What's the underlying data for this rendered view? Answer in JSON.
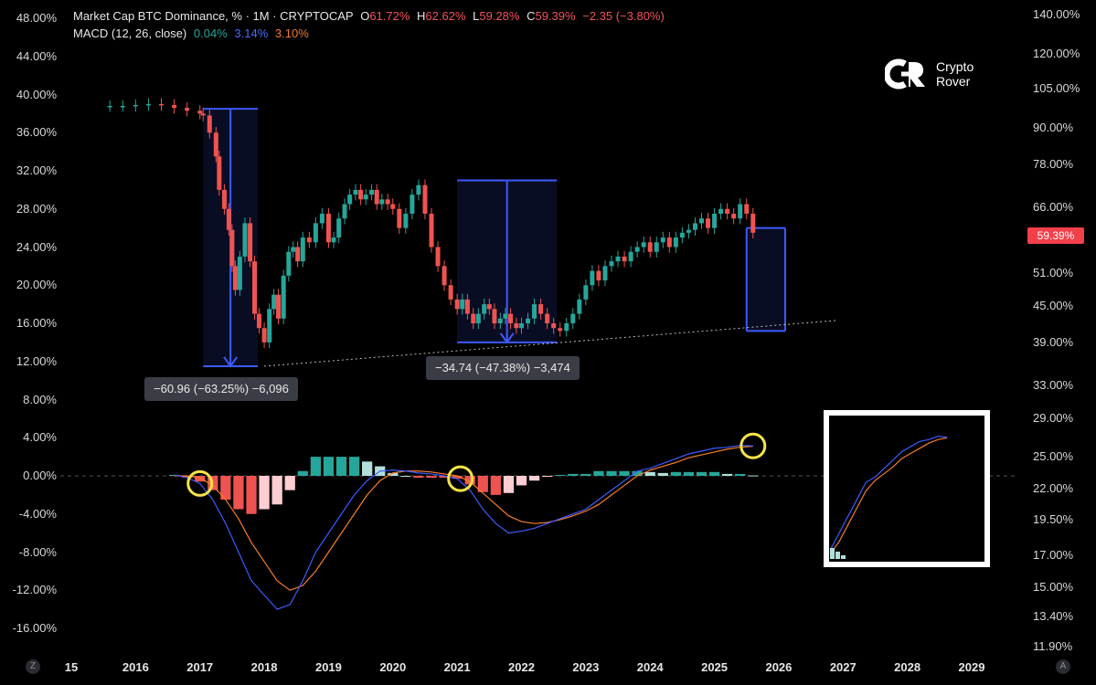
{
  "header": {
    "symbol": "Market Cap BTC Dominance, % · 1M · CRYPTOCAP",
    "o_label": "O",
    "o_value": "61.72%",
    "h_label": "H",
    "h_value": "62.62%",
    "l_label": "L",
    "l_value": "59.28%",
    "c_label": "C",
    "c_value": "59.39%",
    "change": "−2.35 (−3.80%)",
    "macd_label": "MACD (12, 26, close)",
    "macd_hist": "0.04%",
    "macd_line": "3.14%",
    "macd_signal": "3.10%"
  },
  "logo": {
    "line1": "Crypto",
    "line2": "Rover"
  },
  "price_tag": "59.39%",
  "measure_labels": {
    "first": "−60.96 (−63.25%) −6,096",
    "second": "−34.74 (−47.38%) −3,474"
  },
  "corner": {
    "left": "Z",
    "right": "A"
  },
  "colors": {
    "up": "#26a69a",
    "down": "#ef5350",
    "macd": "#3d5afe",
    "signal": "#f57c2a",
    "hist_pos": "#26a69a",
    "hist_pos_light": "#b2dfdb",
    "hist_neg": "#ef5350",
    "hist_neg_light": "#ffcdd2",
    "range_box": "#3d5afe",
    "highlight": "#f7e34a"
  },
  "chart_data": {
    "type": "line",
    "title": "Market Cap BTC Dominance, % · 1M · CRYPTOCAP",
    "left_axis": {
      "ticks": [
        "48.00%",
        "44.00%",
        "40.00%",
        "36.00%",
        "32.00%",
        "28.00%",
        "24.00%",
        "20.00%",
        "16.00%",
        "12.00%",
        "8.00%",
        "4.00%",
        "0.00%",
        "-4.00%",
        "-8.00%",
        "-12.00%",
        "-16.00%"
      ],
      "range": [
        -16,
        48
      ]
    },
    "right_axis": {
      "scale": "log",
      "ticks": [
        "140.00%",
        "120.00%",
        "105.00%",
        "90.00%",
        "78.00%",
        "66.00%",
        "59.39%",
        "51.00%",
        "45.00%",
        "39.00%",
        "33.00%",
        "29.00%",
        "25.00%",
        "22.00%",
        "19.50%",
        "17.00%",
        "15.00%",
        "13.40%",
        "11.90%"
      ]
    },
    "x_ticks": [
      "15",
      "2016",
      "2017",
      "2018",
      "2019",
      "2020",
      "2021",
      "2022",
      "2023",
      "2024",
      "2025",
      "2026",
      "2027",
      "2028",
      "2029"
    ],
    "x_range": [
      2015.0,
      2029.0
    ],
    "dominance_close": {
      "x": [
        2015.6,
        2015.8,
        2016.0,
        2016.2,
        2016.4,
        2016.6,
        2016.8,
        2017.0,
        2017.05,
        2017.15,
        2017.25,
        2017.3,
        2017.38,
        2017.45,
        2017.5,
        2017.55,
        2017.62,
        2017.7,
        2017.78,
        2017.85,
        2017.92,
        2018.0,
        2018.08,
        2018.15,
        2018.22,
        2018.3,
        2018.38,
        2018.45,
        2018.52,
        2018.6,
        2018.7,
        2018.8,
        2018.9,
        2019.0,
        2019.08,
        2019.16,
        2019.25,
        2019.33,
        2019.42,
        2019.5,
        2019.58,
        2019.67,
        2019.75,
        2019.83,
        2019.92,
        2020.0,
        2020.1,
        2020.2,
        2020.3,
        2020.4,
        2020.5,
        2020.6,
        2020.7,
        2020.8,
        2020.9,
        2021.0,
        2021.08,
        2021.16,
        2021.25,
        2021.33,
        2021.42,
        2021.5,
        2021.58,
        2021.67,
        2021.75,
        2021.83,
        2021.92,
        2022.0,
        2022.1,
        2022.2,
        2022.3,
        2022.4,
        2022.5,
        2022.6,
        2022.7,
        2022.8,
        2022.9,
        2023.0,
        2023.1,
        2023.2,
        2023.3,
        2023.4,
        2023.5,
        2023.6,
        2023.7,
        2023.8,
        2023.9,
        2024.0,
        2024.1,
        2024.2,
        2024.3,
        2024.4,
        2024.5,
        2024.6,
        2024.7,
        2024.8,
        2024.9,
        2025.0,
        2025.1,
        2025.2,
        2025.3,
        2025.4,
        2025.5,
        2025.6
      ],
      "y": [
        38.8,
        38.8,
        38.9,
        39.0,
        38.9,
        38.6,
        38.3,
        38.0,
        37.8,
        36.0,
        33.5,
        30.0,
        28.0,
        25.8,
        22.0,
        19.5,
        23.0,
        26.5,
        22.5,
        17.0,
        15.5,
        14.0,
        17.5,
        19.0,
        16.5,
        21.0,
        23.5,
        24.0,
        22.5,
        25.0,
        24.5,
        26.5,
        27.5,
        24.5,
        25.0,
        27.0,
        28.5,
        29.5,
        30.0,
        29.0,
        29.5,
        30.0,
        28.5,
        29.0,
        28.5,
        28.0,
        26.0,
        27.5,
        29.5,
        30.5,
        27.5,
        24.0,
        22.0,
        20.0,
        18.5,
        17.5,
        18.5,
        17.0,
        16.0,
        17.0,
        18.0,
        17.5,
        16.0,
        16.5,
        17.0,
        16.0,
        15.5,
        16.0,
        16.5,
        18.0,
        17.0,
        16.0,
        15.5,
        15.2,
        16.0,
        17.0,
        18.5,
        20.0,
        21.5,
        20.5,
        22.0,
        22.5,
        23.0,
        22.5,
        23.5,
        24.0,
        24.5,
        23.5,
        24.5,
        25.0,
        24.0,
        25.0,
        25.5,
        25.8,
        26.5,
        27.0,
        26.0,
        27.5,
        28.0,
        27.5,
        27.0,
        28.5,
        27.5,
        25.5
      ]
    },
    "measurements": [
      {
        "label": "−60.96 (−63.25%) −6,096",
        "from_x": 2017.05,
        "to_x": 2017.9,
        "from_y": 38.5,
        "to_y": 11.5
      },
      {
        "label": "−34.74 (−47.38%) −3,474",
        "from_x": 2021.0,
        "to_x": 2022.55,
        "from_y": 31.0,
        "to_y": 14.0
      },
      {
        "label": "",
        "from_x": 2025.5,
        "to_x": 2026.1,
        "from_y": 26.0,
        "to_y": 15.2
      }
    ],
    "support_line": {
      "x": [
        2018.0,
        2026.9
      ],
      "y": [
        11.5,
        16.3
      ]
    },
    "macd": {
      "x": [
        2016.6,
        2016.8,
        2017.0,
        2017.2,
        2017.4,
        2017.6,
        2017.8,
        2018.0,
        2018.2,
        2018.4,
        2018.6,
        2018.8,
        2019.0,
        2019.2,
        2019.4,
        2019.6,
        2019.8,
        2020.0,
        2020.2,
        2020.4,
        2020.6,
        2020.8,
        2021.0,
        2021.2,
        2021.4,
        2021.6,
        2021.8,
        2022.0,
        2022.2,
        2022.4,
        2022.6,
        2022.8,
        2023.0,
        2023.2,
        2023.4,
        2023.6,
        2023.8,
        2024.0,
        2024.2,
        2024.4,
        2024.6,
        2024.8,
        2025.0,
        2025.2,
        2025.4,
        2025.6
      ],
      "macd": [
        0.1,
        -0.2,
        -0.8,
        -2.5,
        -5.0,
        -8.0,
        -11.0,
        -12.5,
        -14.0,
        -13.5,
        -11.0,
        -8.0,
        -6.0,
        -4.0,
        -2.0,
        -0.5,
        0.5,
        0.6,
        0.5,
        0.3,
        0.2,
        0.0,
        -0.3,
        -1.5,
        -3.5,
        -5.0,
        -6.0,
        -5.8,
        -5.5,
        -5.0,
        -4.5,
        -4.0,
        -3.5,
        -2.5,
        -1.5,
        -0.5,
        0.5,
        0.8,
        1.3,
        1.8,
        2.3,
        2.6,
        2.9,
        3.0,
        3.2,
        3.14
      ],
      "signal": [
        0.0,
        0.0,
        -0.2,
        -1.0,
        -2.5,
        -4.5,
        -7.0,
        -9.0,
        -11.0,
        -12.0,
        -11.5,
        -10.0,
        -8.0,
        -6.0,
        -4.0,
        -2.0,
        -0.5,
        0.3,
        0.5,
        0.5,
        0.4,
        0.2,
        0.0,
        -0.6,
        -1.8,
        -3.0,
        -4.2,
        -4.8,
        -5.0,
        -4.9,
        -4.6,
        -4.2,
        -3.7,
        -3.0,
        -2.0,
        -1.0,
        0.0,
        0.6,
        1.0,
        1.4,
        1.9,
        2.2,
        2.5,
        2.8,
        3.0,
        3.1
      ],
      "histogram": [
        0.1,
        -0.2,
        -0.6,
        -1.5,
        -2.5,
        -3.5,
        -4.0,
        -3.5,
        -3.0,
        -1.5,
        0.5,
        2.0,
        2.0,
        2.0,
        2.0,
        1.5,
        1.0,
        0.3,
        0.0,
        -0.2,
        -0.2,
        -0.2,
        -0.3,
        -0.9,
        -1.7,
        -2.0,
        -1.8,
        -1.0,
        -0.5,
        -0.1,
        0.1,
        0.2,
        0.2,
        0.5,
        0.5,
        0.5,
        0.5,
        0.4,
        0.3,
        0.4,
        0.4,
        0.4,
        0.4,
        0.2,
        0.2,
        0.04
      ]
    },
    "highlight_circles_x": [
      2017.0,
      2021.05,
      2025.6
    ]
  }
}
